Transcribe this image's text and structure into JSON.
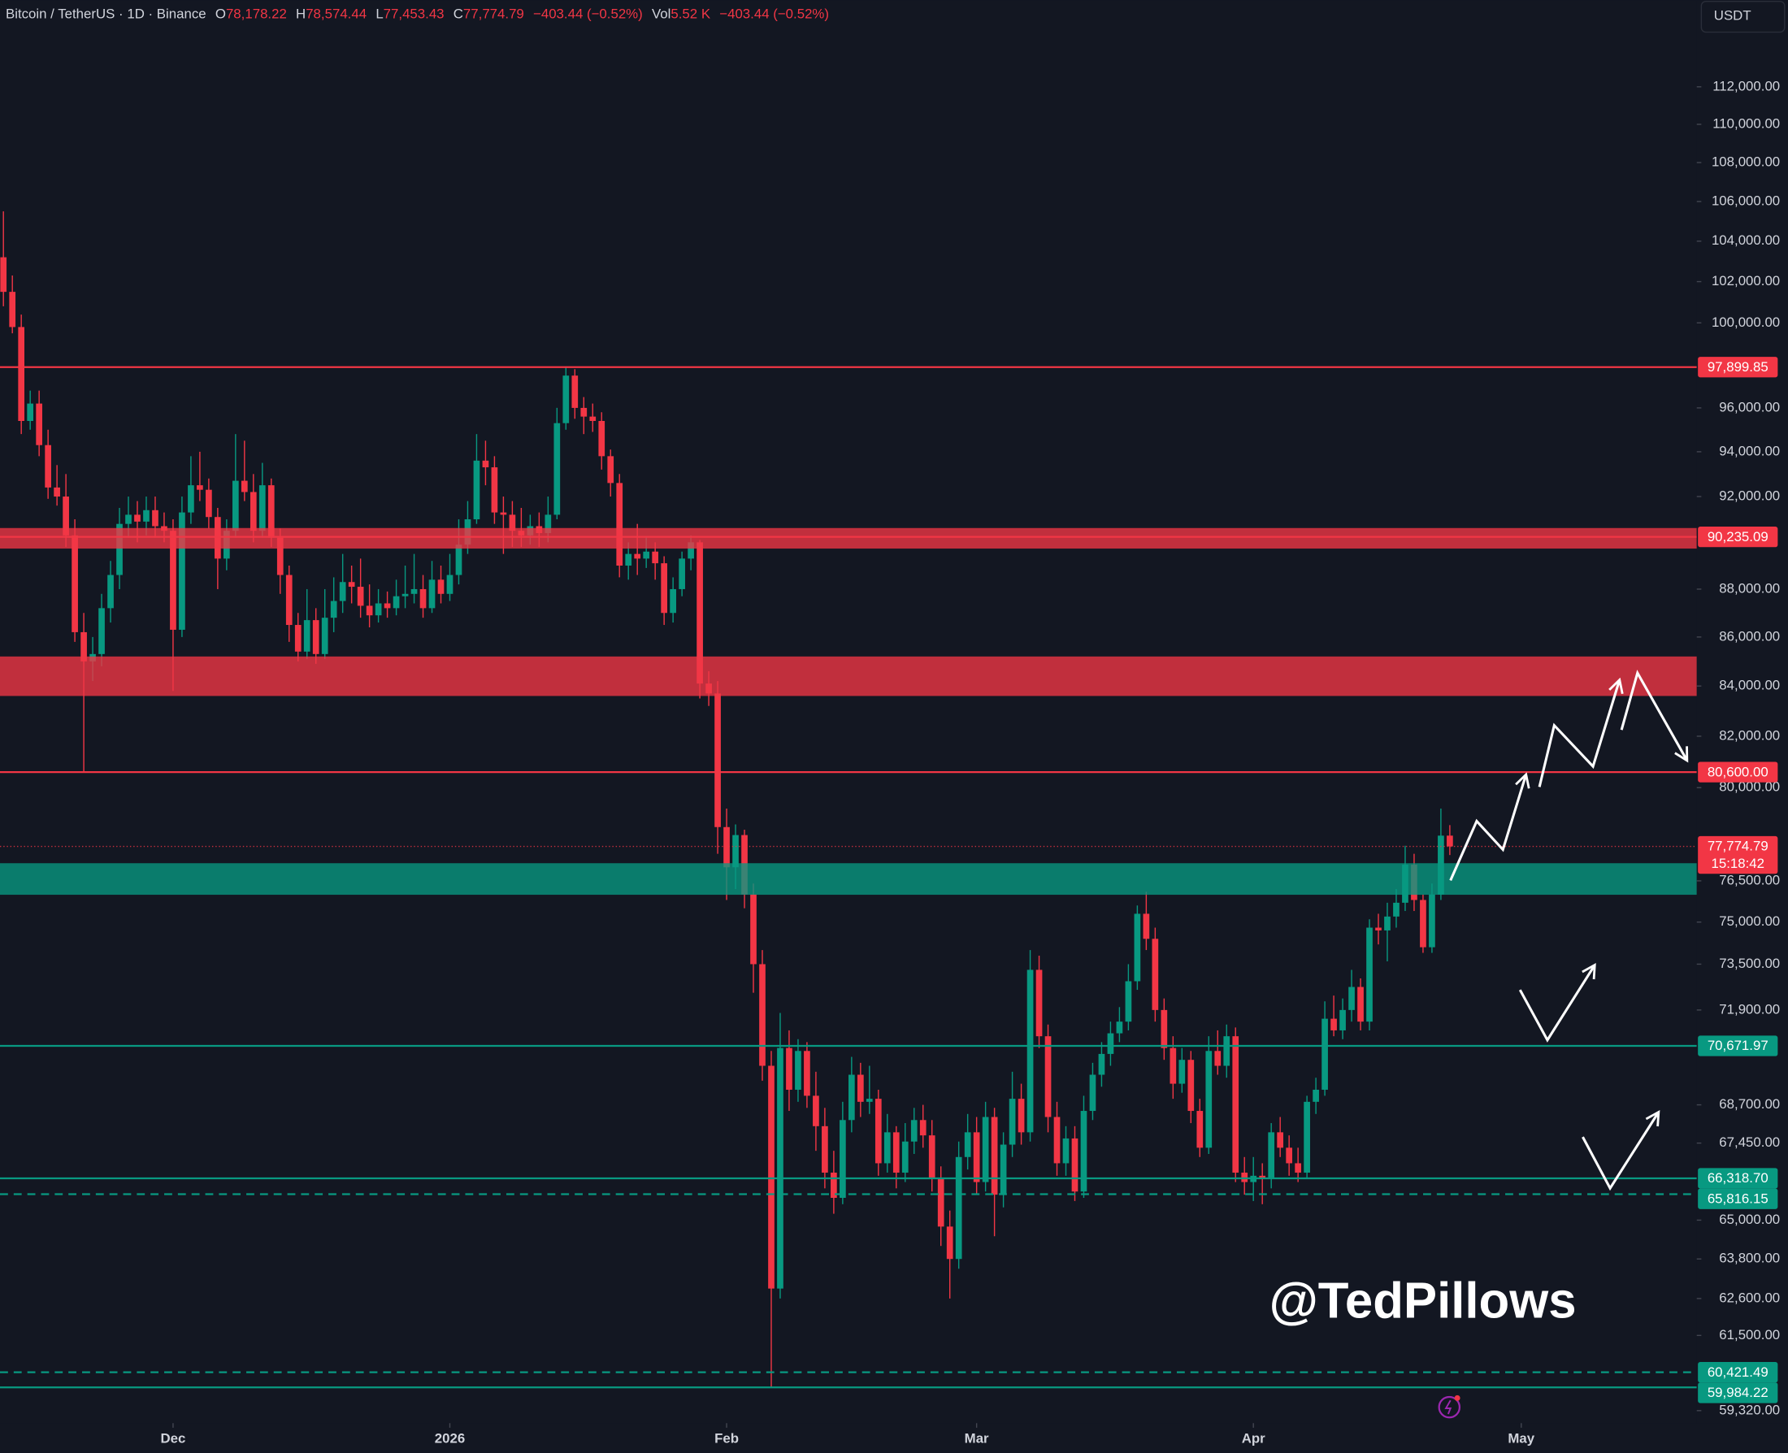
{
  "header": {
    "symbol": "Bitcoin / TetherUS · 1D · Binance",
    "open_label": "O",
    "open": "78,178.22",
    "high_label": "H",
    "high": "78,574.44",
    "low_label": "L",
    "low": "77,453.43",
    "close_label": "C",
    "close": "77,774.79",
    "change": "−403.44 (−0.52%)",
    "volume_label": "Vol",
    "volume": "5.52 K",
    "volume_change": "−403.44 (−0.52%)"
  },
  "currency_button": "USDT",
  "countdown": "15:18:42",
  "watermark": "@TedPillows",
  "chart_data": {
    "type": "candlestick",
    "log": true,
    "up_color": "#089981",
    "down_color": "#f23645",
    "xlim": [
      -0.383,
      189.66
    ],
    "xticks": [
      {
        "value": 19,
        "label": "Dec"
      },
      {
        "value": 50,
        "label": "2026"
      },
      {
        "value": 81,
        "label": "Feb"
      },
      {
        "value": 109,
        "label": "Mar"
      },
      {
        "value": 140,
        "label": "Apr"
      },
      {
        "value": 170,
        "label": "May"
      }
    ],
    "ylim": [
      58964,
      116755
    ],
    "yticks": [
      {
        "value": 112000,
        "label": "112,000.00"
      },
      {
        "value": 110000,
        "label": "110,000.00"
      },
      {
        "value": 108000,
        "label": "108,000.00"
      },
      {
        "value": 106000,
        "label": "106,000.00"
      },
      {
        "value": 104000,
        "label": "104,000.00"
      },
      {
        "value": 102000,
        "label": "102,000.00"
      },
      {
        "value": 100000,
        "label": "100,000.00"
      },
      {
        "value": 96000,
        "label": "96,000.00"
      },
      {
        "value": 94000,
        "label": "94,000.00"
      },
      {
        "value": 92000,
        "label": "92,000.00"
      },
      {
        "value": 88000,
        "label": "88,000.00"
      },
      {
        "value": 86000,
        "label": "86,000.00"
      },
      {
        "value": 84000,
        "label": "84,000.00"
      },
      {
        "value": 82000,
        "label": "82,000.00"
      },
      {
        "value": 80000,
        "label": "80,000.00"
      },
      {
        "value": 76500,
        "label": "76,500.00"
      },
      {
        "value": 75000,
        "label": "75,000.00"
      },
      {
        "value": 73500,
        "label": "73,500.00"
      },
      {
        "value": 71900,
        "label": "71,900.00"
      },
      {
        "value": 68700,
        "label": "68,700.00"
      },
      {
        "value": 67450,
        "label": "67,450.00"
      },
      {
        "value": 65000,
        "label": "65,000.00"
      },
      {
        "value": 63800,
        "label": "63,800.00"
      },
      {
        "value": 62600,
        "label": "62,600.00"
      },
      {
        "value": 61500,
        "label": "61,500.00"
      },
      {
        "value": 59320,
        "label": "59,320.00"
      }
    ],
    "zones": [
      {
        "range": [
          89730,
          90620
        ],
        "color": "#f23645"
      },
      {
        "range": [
          83600,
          85200
        ],
        "color": "#f23645"
      },
      {
        "range": [
          75990,
          77150
        ],
        "color": "#089981"
      }
    ],
    "price_lines": [
      {
        "value": 97899.85,
        "label": "97,899.85",
        "color": "#f23645",
        "dashed": false
      },
      {
        "value": 90235.09,
        "label": "90,235.09",
        "color": "#f23645",
        "dashed": false
      },
      {
        "value": 80600,
        "label": "80,600.00",
        "color": "#f23645",
        "dashed": false
      },
      {
        "value": 70671.97,
        "label": "70,671.97",
        "color": "#089981",
        "dashed": false
      },
      {
        "value": 66318.7,
        "label": "66,318.70",
        "color": "#089981",
        "dashed": false
      },
      {
        "value": 65816.15,
        "label": "65,816.15",
        "color": "#089981",
        "dashed": true
      },
      {
        "value": 60421.49,
        "label": "60,421.49",
        "color": "#089981",
        "dashed": true
      },
      {
        "value": 59984.22,
        "label": "59,984.22",
        "color": "#089981",
        "dashed": false
      }
    ],
    "last_price": {
      "value": 77774.79,
      "label": "77,774.79",
      "color": "#f23645"
    },
    "candles": [
      [
        103200,
        105500,
        100800,
        101500
      ],
      [
        101500,
        102300,
        99500,
        99800
      ],
      [
        99800,
        100400,
        94800,
        95400
      ],
      [
        95400,
        96800,
        95000,
        96200
      ],
      [
        96200,
        96800,
        93800,
        94300
      ],
      [
        94300,
        95000,
        91900,
        92400
      ],
      [
        92400,
        93400,
        91600,
        92000
      ],
      [
        92000,
        93000,
        89800,
        90300
      ],
      [
        90300,
        91000,
        85800,
        86200
      ],
      [
        86200,
        87000,
        80600,
        85000
      ],
      [
        85000,
        86000,
        84200,
        85300
      ],
      [
        85300,
        87800,
        84800,
        87200
      ],
      [
        87200,
        89200,
        86600,
        88600
      ],
      [
        88600,
        91500,
        88000,
        90800
      ],
      [
        90800,
        92000,
        90200,
        91200
      ],
      [
        91200,
        91800,
        90000,
        90900
      ],
      [
        90900,
        92000,
        90300,
        91400
      ],
      [
        91400,
        92000,
        90200,
        90700
      ],
      [
        90700,
        91300,
        90000,
        90500
      ],
      [
        90500,
        91000,
        83800,
        86300
      ],
      [
        86300,
        92000,
        86000,
        91300
      ],
      [
        91300,
        93800,
        90800,
        92500
      ],
      [
        92500,
        94000,
        91800,
        92300
      ],
      [
        92300,
        92800,
        90600,
        91100
      ],
      [
        91100,
        91500,
        88000,
        89300
      ],
      [
        89300,
        91000,
        88800,
        90500
      ],
      [
        90500,
        94800,
        90200,
        92700
      ],
      [
        92700,
        94500,
        91800,
        92200
      ],
      [
        92200,
        93000,
        90000,
        90500
      ],
      [
        90500,
        93500,
        90200,
        92500
      ],
      [
        92500,
        92800,
        89800,
        90200
      ],
      [
        90200,
        90600,
        87800,
        88600
      ],
      [
        88600,
        89000,
        85800,
        86500
      ],
      [
        86500,
        87000,
        85000,
        85400
      ],
      [
        85400,
        88000,
        85100,
        86700
      ],
      [
        86700,
        87200,
        84900,
        85300
      ],
      [
        85300,
        88000,
        85100,
        86800
      ],
      [
        86800,
        88500,
        86200,
        87500
      ],
      [
        87500,
        89500,
        87000,
        88300
      ],
      [
        88300,
        89000,
        87400,
        88100
      ],
      [
        88100,
        89300,
        86800,
        87300
      ],
      [
        87300,
        88200,
        86400,
        86900
      ],
      [
        86900,
        88000,
        86600,
        87400
      ],
      [
        87400,
        87900,
        86800,
        87200
      ],
      [
        87200,
        88400,
        86900,
        87700
      ],
      [
        87700,
        89000,
        87200,
        87800
      ],
      [
        87800,
        89500,
        87400,
        88000
      ],
      [
        88000,
        88600,
        86800,
        87200
      ],
      [
        87200,
        89200,
        87000,
        88400
      ],
      [
        88400,
        89000,
        87400,
        87800
      ],
      [
        87800,
        89500,
        87500,
        88600
      ],
      [
        88600,
        91000,
        88200,
        89900
      ],
      [
        89900,
        91800,
        89500,
        91000
      ],
      [
        91000,
        94800,
        90800,
        93600
      ],
      [
        93600,
        94500,
        92500,
        93300
      ],
      [
        93300,
        93800,
        90800,
        91300
      ],
      [
        91300,
        92000,
        89500,
        91200
      ],
      [
        91200,
        91800,
        89800,
        90500
      ],
      [
        90500,
        91500,
        89800,
        90300
      ],
      [
        90300,
        91200,
        89900,
        90700
      ],
      [
        90700,
        91300,
        89800,
        90400
      ],
      [
        90400,
        92000,
        90000,
        91200
      ],
      [
        91200,
        96000,
        91000,
        95300
      ],
      [
        95300,
        97900,
        95000,
        97500
      ],
      [
        97500,
        97800,
        95500,
        96000
      ],
      [
        96000,
        96500,
        94800,
        95600
      ],
      [
        95600,
        96200,
        94900,
        95400
      ],
      [
        95400,
        95800,
        93200,
        93800
      ],
      [
        93800,
        94100,
        92000,
        92600
      ],
      [
        92600,
        93000,
        88500,
        89000
      ],
      [
        89000,
        90000,
        88400,
        89500
      ],
      [
        89500,
        90800,
        88600,
        89300
      ],
      [
        89300,
        90200,
        88900,
        89600
      ],
      [
        89600,
        90000,
        88400,
        89100
      ],
      [
        89100,
        89400,
        86500,
        87000
      ],
      [
        87000,
        88500,
        86600,
        88000
      ],
      [
        88000,
        89600,
        87700,
        89300
      ],
      [
        89300,
        90300,
        88800,
        90000
      ],
      [
        90000,
        90100,
        83500,
        84100
      ],
      [
        84100,
        84600,
        83200,
        83700
      ],
      [
        83700,
        84200,
        77500,
        78500
      ],
      [
        78500,
        79200,
        75800,
        77000
      ],
      [
        77000,
        78600,
        76200,
        78200
      ],
      [
        78200,
        78400,
        75500,
        76000
      ],
      [
        76000,
        76400,
        72500,
        73500
      ],
      [
        73500,
        74000,
        69500,
        70000
      ],
      [
        70000,
        70500,
        60000,
        62900
      ],
      [
        62900,
        71800,
        62600,
        70600
      ],
      [
        70600,
        71200,
        68500,
        69200
      ],
      [
        69200,
        70900,
        68800,
        70500
      ],
      [
        70500,
        70800,
        68600,
        69000
      ],
      [
        69000,
        69800,
        67200,
        68000
      ],
      [
        68000,
        68600,
        66000,
        66500
      ],
      [
        66500,
        67200,
        65200,
        65700
      ],
      [
        65700,
        68800,
        65500,
        68200
      ],
      [
        68200,
        70300,
        67800,
        69700
      ],
      [
        69700,
        70100,
        68300,
        68800
      ],
      [
        68800,
        70000,
        68400,
        68900
      ],
      [
        68900,
        69200,
        66400,
        66800
      ],
      [
        66800,
        68400,
        66500,
        67800
      ],
      [
        67800,
        68000,
        66000,
        66500
      ],
      [
        66500,
        68100,
        66200,
        67500
      ],
      [
        67500,
        68600,
        67100,
        68200
      ],
      [
        68200,
        68700,
        67300,
        67700
      ],
      [
        67700,
        68200,
        65900,
        66300
      ],
      [
        66300,
        66700,
        64200,
        64800
      ],
      [
        64800,
        65300,
        62600,
        63800
      ],
      [
        63800,
        67500,
        63500,
        67000
      ],
      [
        67000,
        68400,
        66600,
        67800
      ],
      [
        67800,
        68300,
        65800,
        66200
      ],
      [
        66200,
        68800,
        65900,
        68300
      ],
      [
        68300,
        68600,
        64500,
        65800
      ],
      [
        65800,
        67800,
        65400,
        67400
      ],
      [
        67400,
        69800,
        67000,
        68900
      ],
      [
        68900,
        69400,
        67400,
        67800
      ],
      [
        67800,
        74000,
        67500,
        73300
      ],
      [
        73300,
        73800,
        70600,
        71000
      ],
      [
        71000,
        71400,
        67800,
        68300
      ],
      [
        68300,
        68800,
        66400,
        66800
      ],
      [
        66800,
        68000,
        66400,
        67600
      ],
      [
        67600,
        68000,
        65600,
        65900
      ],
      [
        65900,
        69000,
        65700,
        68500
      ],
      [
        68500,
        70100,
        68200,
        69700
      ],
      [
        69700,
        70800,
        69300,
        70400
      ],
      [
        70400,
        71500,
        70000,
        71100
      ],
      [
        71100,
        72000,
        70800,
        71500
      ],
      [
        71500,
        73500,
        71200,
        72900
      ],
      [
        72900,
        75600,
        72600,
        75300
      ],
      [
        75300,
        76100,
        74000,
        74400
      ],
      [
        74400,
        74800,
        71500,
        71900
      ],
      [
        71900,
        72300,
        70200,
        70600
      ],
      [
        70600,
        71000,
        68900,
        69400
      ],
      [
        69400,
        70600,
        69100,
        70200
      ],
      [
        70200,
        70500,
        68100,
        68500
      ],
      [
        68500,
        68900,
        67000,
        67300
      ],
      [
        67300,
        71000,
        67100,
        70500
      ],
      [
        70500,
        71200,
        69700,
        70000
      ],
      [
        70000,
        71400,
        69600,
        71000
      ],
      [
        71000,
        71300,
        66200,
        66500
      ],
      [
        66500,
        67000,
        65800,
        66200
      ],
      [
        66200,
        67000,
        65600,
        66400
      ],
      [
        66400,
        66800,
        65500,
        66300
      ],
      [
        66300,
        68100,
        66000,
        67800
      ],
      [
        67800,
        68300,
        67000,
        67300
      ],
      [
        67300,
        67700,
        66400,
        66800
      ],
      [
        66800,
        67300,
        66200,
        66500
      ],
      [
        66500,
        69000,
        66300,
        68800
      ],
      [
        68800,
        69600,
        68400,
        69200
      ],
      [
        69200,
        72200,
        69000,
        71600
      ],
      [
        71600,
        72400,
        71000,
        71200
      ],
      [
        71200,
        72300,
        70900,
        71900
      ],
      [
        71900,
        73300,
        71500,
        72700
      ],
      [
        72700,
        73000,
        71200,
        71500
      ],
      [
        71500,
        75100,
        71200,
        74800
      ],
      [
        74800,
        75300,
        74200,
        74700
      ],
      [
        74700,
        75700,
        73600,
        75200
      ],
      [
        75200,
        76200,
        74800,
        75700
      ],
      [
        75700,
        77800,
        75400,
        77100
      ],
      [
        77100,
        77500,
        75400,
        75800
      ],
      [
        75800,
        76000,
        73900,
        74100
      ],
      [
        74100,
        76400,
        73900,
        76000
      ],
      [
        76000,
        79200,
        75800,
        78178.22
      ],
      [
        78178.22,
        78574.44,
        77453.43,
        77774.79
      ]
    ]
  }
}
